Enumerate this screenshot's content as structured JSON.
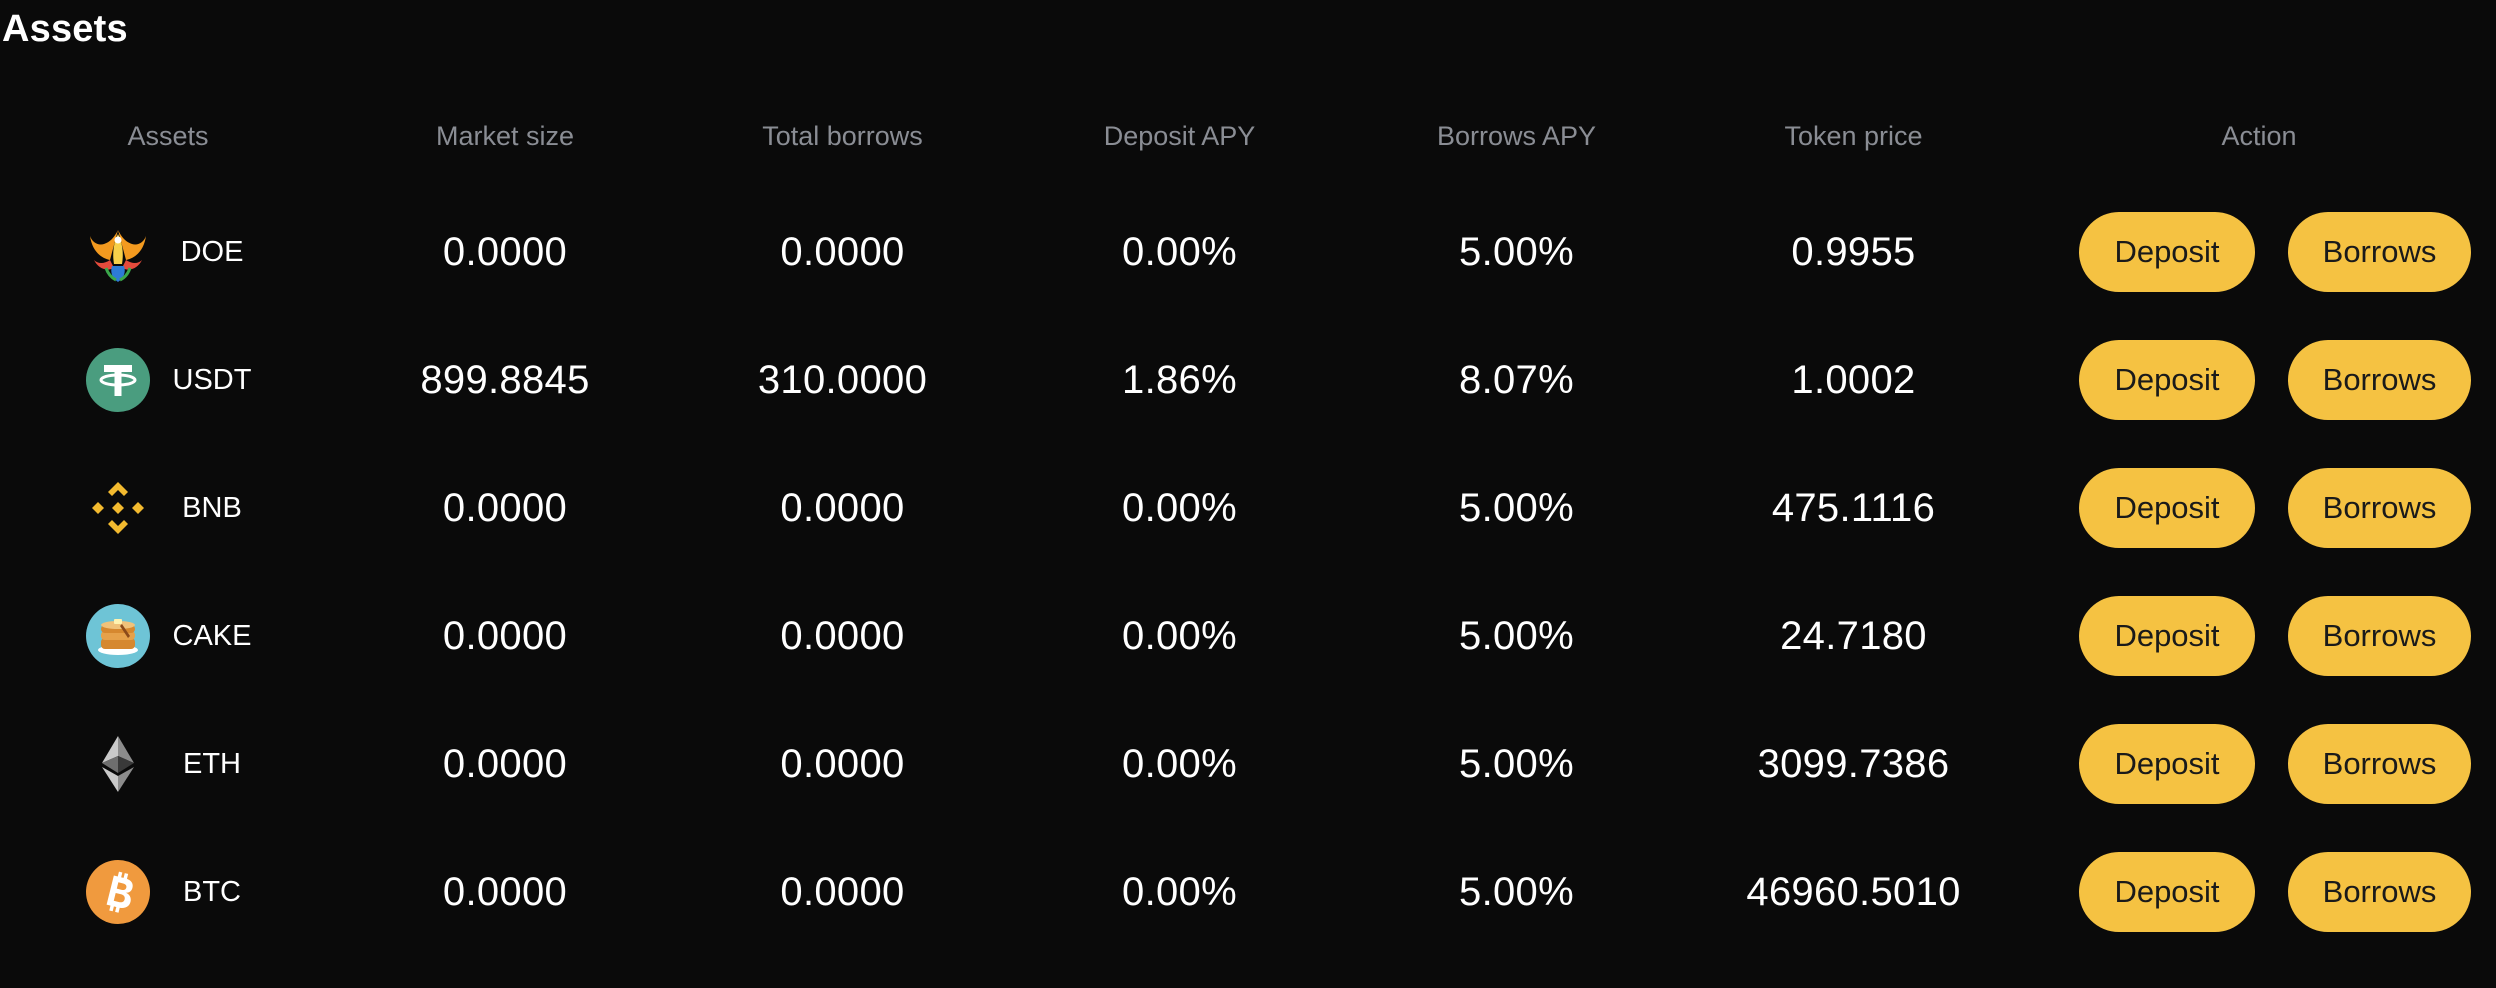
{
  "title": "Assets",
  "columns": {
    "assets": "Assets",
    "market_size": "Market size",
    "total_borrows": "Total borrows",
    "deposit_apy": "Deposit APY",
    "borrows_apy": "Borrows APY",
    "token_price": "Token price",
    "action": "Action"
  },
  "actions": {
    "deposit": "Deposit",
    "borrows": "Borrows"
  },
  "colors": {
    "background": "#0a0a0a",
    "button": "#f5c242",
    "header_text": "#8a8d94"
  },
  "rows": [
    {
      "asset": "DOE",
      "icon": "doe-phoenix-icon",
      "market_size": "0.0000",
      "total_borrows": "0.0000",
      "deposit_apy": "0.00%",
      "borrows_apy": "5.00%",
      "token_price": "0.9955"
    },
    {
      "asset": "USDT",
      "icon": "tether-icon",
      "market_size": "899.8845",
      "total_borrows": "310.0000",
      "deposit_apy": "1.86%",
      "borrows_apy": "8.07%",
      "token_price": "1.0002"
    },
    {
      "asset": "BNB",
      "icon": "bnb-icon",
      "market_size": "0.0000",
      "total_borrows": "0.0000",
      "deposit_apy": "0.00%",
      "borrows_apy": "5.00%",
      "token_price": "475.1116"
    },
    {
      "asset": "CAKE",
      "icon": "pancake-icon",
      "market_size": "0.0000",
      "total_borrows": "0.0000",
      "deposit_apy": "0.00%",
      "borrows_apy": "5.00%",
      "token_price": "24.7180"
    },
    {
      "asset": "ETH",
      "icon": "ethereum-icon",
      "market_size": "0.0000",
      "total_borrows": "0.0000",
      "deposit_apy": "0.00%",
      "borrows_apy": "5.00%",
      "token_price": "3099.7386"
    },
    {
      "asset": "BTC",
      "icon": "bitcoin-icon",
      "market_size": "0.0000",
      "total_borrows": "0.0000",
      "deposit_apy": "0.00%",
      "borrows_apy": "5.00%",
      "token_price": "46960.5010"
    }
  ]
}
